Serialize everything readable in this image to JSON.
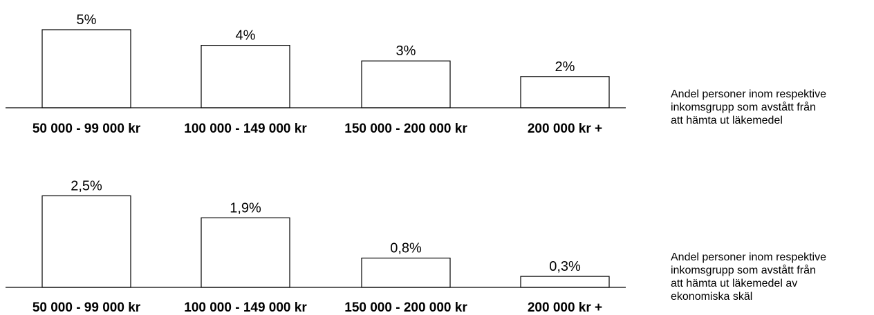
{
  "chart_data": [
    {
      "type": "bar",
      "categories": [
        "50 000 - 99 000 kr",
        "100 000 - 149 000 kr",
        "150 000 - 200 000 kr",
        "200 000 kr +"
      ],
      "values": [
        5,
        4,
        3,
        2
      ],
      "value_labels": [
        "5%",
        "4%",
        "3%",
        "2%"
      ],
      "caption_lines": [
        "Andel personer inom respektive",
        "inkomsgrupp som avstått från",
        "att hämta ut läkemedel"
      ],
      "grid": false,
      "legend": "none"
    },
    {
      "type": "bar",
      "categories": [
        "50 000 - 99 000 kr",
        "100 000 - 149 000 kr",
        "150 000 - 200 000 kr",
        "200 000 kr +"
      ],
      "values": [
        2.5,
        1.9,
        0.8,
        0.3
      ],
      "value_labels": [
        "2,5%",
        "1,9%",
        "0,8%",
        "0,3%"
      ],
      "caption_lines": [
        "Andel personer inom respektive",
        "inkomsgrupp som avstått från",
        "att hämta ut läkemedel av",
        "ekonomiska skäl"
      ],
      "grid": false,
      "legend": "none"
    }
  ]
}
